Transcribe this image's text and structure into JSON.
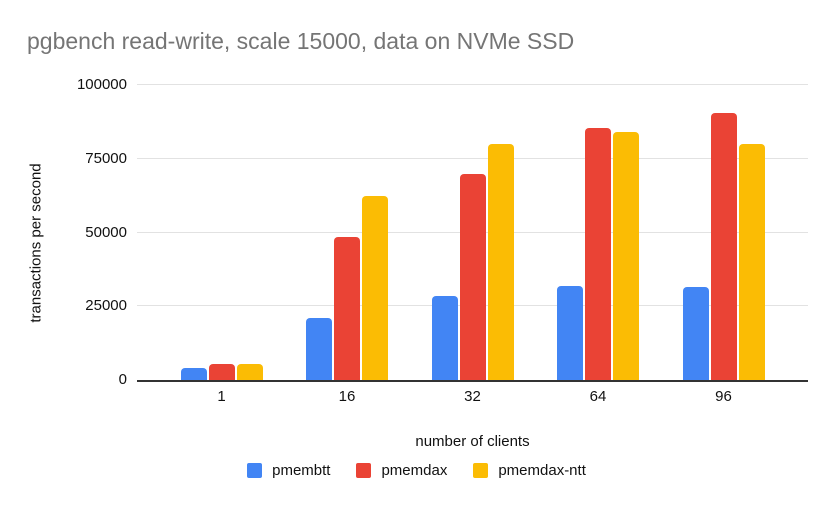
{
  "chart_data": {
    "type": "bar",
    "title": "pgbench read-write, scale 15000, data on NVMe SSD",
    "xlabel": "number of clients",
    "ylabel": "transactions per second",
    "categories": [
      "1",
      "16",
      "32",
      "64",
      "96"
    ],
    "series": [
      {
        "name": "pmembtt",
        "color": "#4285F4",
        "values": [
          4000,
          21000,
          28500,
          32000,
          31500
        ]
      },
      {
        "name": "pmemdax",
        "color": "#EA4335",
        "values": [
          5500,
          48500,
          70000,
          85500,
          90500
        ]
      },
      {
        "name": "pmemdax-ntt",
        "color": "#FBBC04",
        "values": [
          5400,
          62500,
          80000,
          84000,
          80000
        ]
      }
    ],
    "ylim": [
      0,
      100000
    ],
    "yticks": [
      0,
      25000,
      50000,
      75000,
      100000
    ],
    "ytick_labels": [
      "0",
      "25000",
      "50000",
      "75000",
      "100000"
    ],
    "grid": "horizontal",
    "legend_position": "bottom"
  },
  "colors": {
    "title_text": "#757575",
    "axis_text": "#111111",
    "gridline": "#e2e2e2",
    "baseline": "#333333",
    "background": "#ffffff"
  }
}
